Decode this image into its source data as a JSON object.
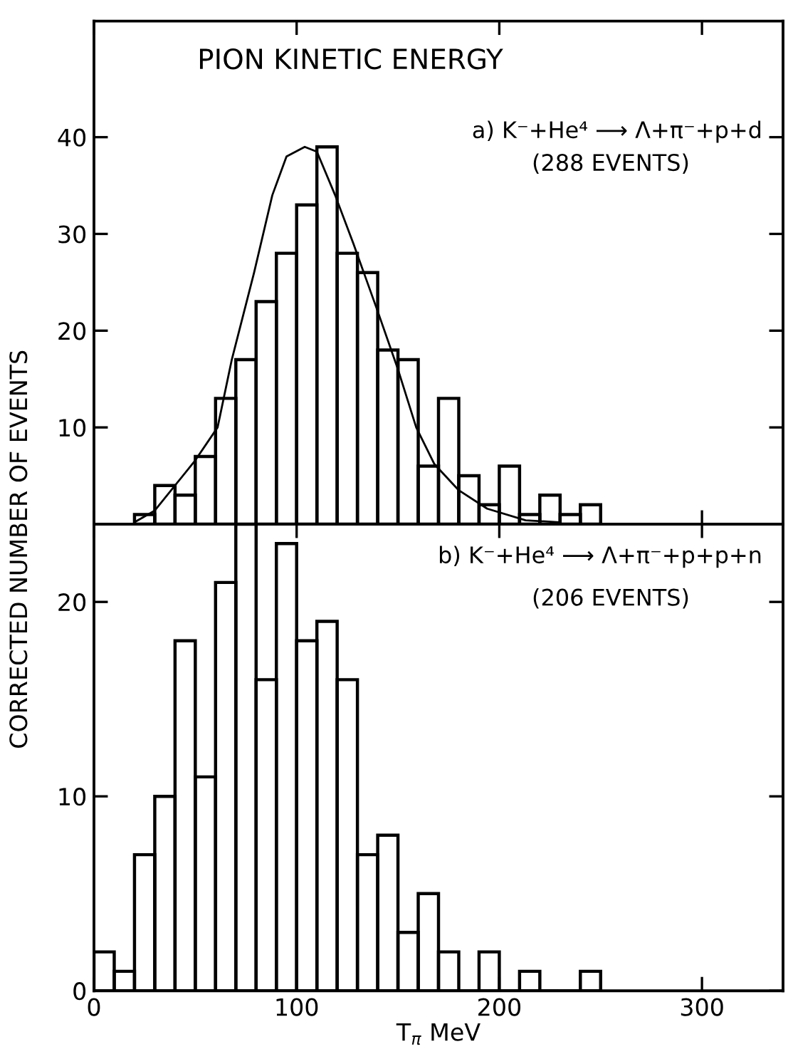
{
  "chart_data": [
    {
      "type": "histogram",
      "title": "PION KINETIC ENERGY",
      "ylabel": "CORRECTED NUMBER OF EVENTS",
      "color": "#000000",
      "bins": [
        20,
        30,
        40,
        50,
        60,
        70,
        80,
        90,
        100,
        110,
        120,
        130,
        140,
        150,
        160,
        170,
        180,
        190,
        200,
        210,
        220,
        230,
        240,
        250
      ],
      "values": [
        1,
        4,
        3,
        7,
        13,
        17,
        23,
        28,
        33,
        39,
        28,
        26,
        18,
        17,
        6,
        13,
        5,
        2,
        6,
        1,
        3,
        1,
        2
      ],
      "series": [
        {
          "type": "line",
          "color": "#000000",
          "x": [
            20,
            30,
            50,
            61,
            68,
            79,
            88,
            95,
            104,
            110,
            119,
            128,
            140,
            150,
            159,
            168,
            180,
            194,
            213,
            229
          ],
          "values": [
            0.2,
            1.4,
            6.6,
            10,
            17,
            26,
            34,
            38,
            39,
            38.5,
            34,
            29,
            22,
            16,
            10,
            6.2,
            3.5,
            1.6,
            0.4,
            0.2
          ]
        }
      ],
      "annotations": [
        "a) K⁻+He⁴ ⟶ Λ+π⁻+p+d",
        "(288 EVENTS)"
      ],
      "xlim": [
        0,
        340
      ],
      "xticks": [
        0,
        100,
        200,
        300
      ],
      "ylim": [
        0,
        52
      ],
      "yticks": [
        10,
        20,
        30,
        40
      ],
      "tick_labels": "y",
      "grid": false,
      "legend": false
    },
    {
      "type": "histogram",
      "xlabel": "T$_{π}$ MeV",
      "color": "#000000",
      "bins": [
        0,
        10,
        20,
        30,
        40,
        50,
        60,
        70,
        80,
        90,
        100,
        110,
        120,
        130,
        140,
        150,
        160,
        170,
        180,
        190,
        200,
        210,
        220,
        230,
        240,
        250
      ],
      "values": [
        2,
        1,
        7,
        10,
        18,
        11,
        21,
        24,
        16,
        23,
        18,
        19,
        16,
        7,
        8,
        3,
        5,
        2,
        0,
        2,
        0,
        1,
        0,
        0,
        1
      ],
      "annotations": [
        "b) K⁻+He⁴ ⟶ Λ+π⁻+p+p+n",
        "(206 EVENTS)"
      ],
      "xlim": [
        0,
        340
      ],
      "xticks": [
        0,
        100,
        200,
        300
      ],
      "ylim": [
        0,
        24
      ],
      "yticks": [
        0,
        10,
        20
      ],
      "grid": false,
      "legend": false
    }
  ]
}
